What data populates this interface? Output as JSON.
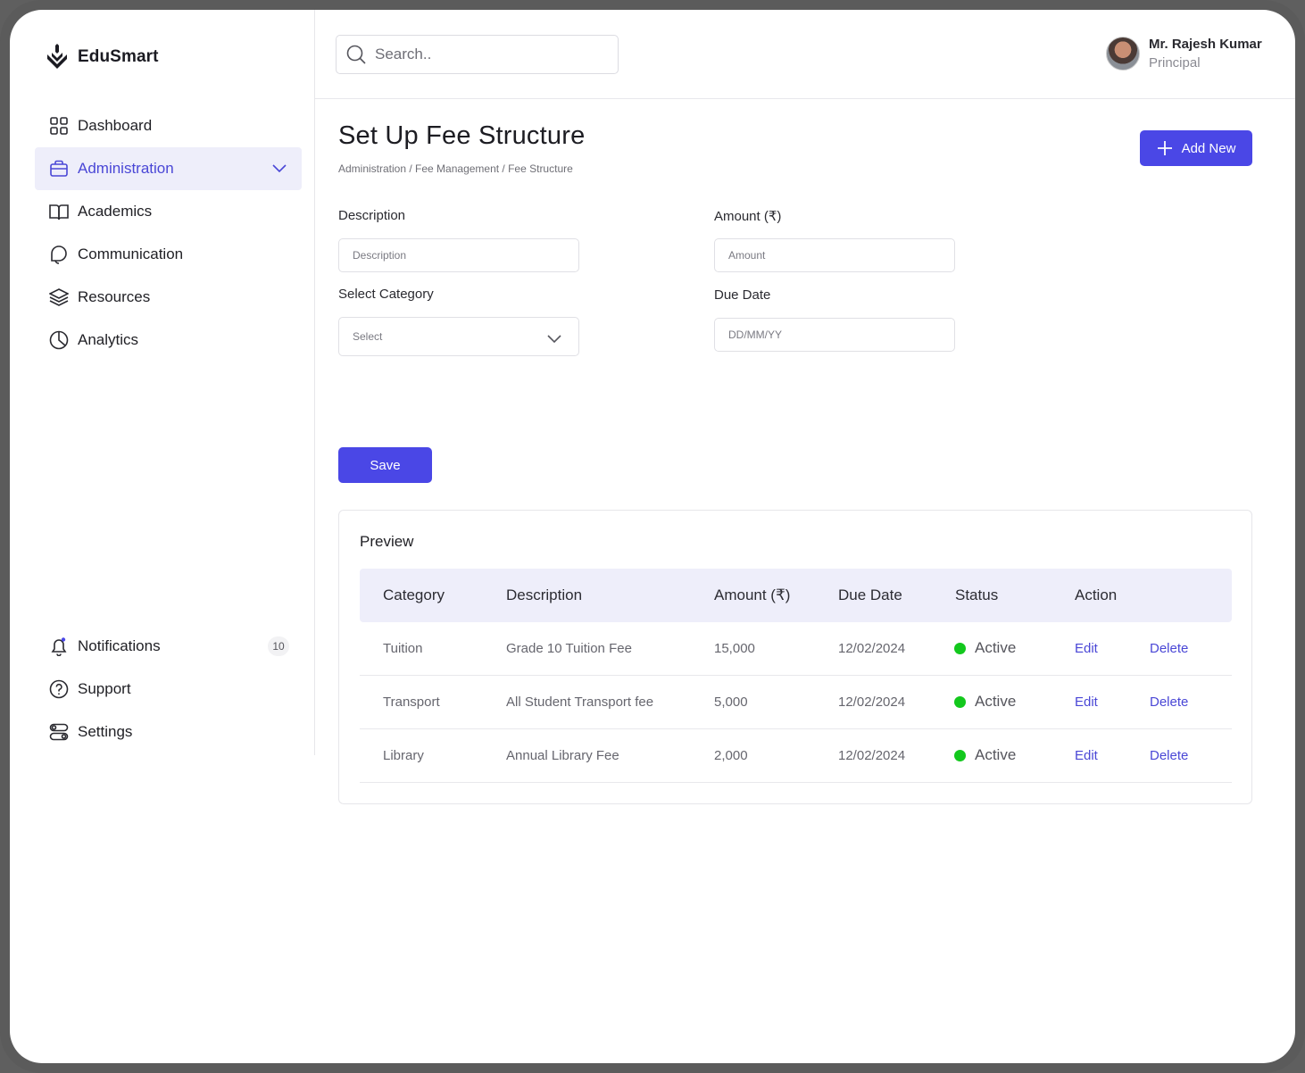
{
  "app": {
    "name": "EduSmart"
  },
  "search": {
    "placeholder": "Search.."
  },
  "user": {
    "name": "Mr. Rajesh Kumar",
    "role": "Principal"
  },
  "sidebar": {
    "items": [
      {
        "label": "Dashboard",
        "icon": "grid-icon"
      },
      {
        "label": "Administration",
        "icon": "briefcase-icon",
        "active": true
      },
      {
        "label": "Academics",
        "icon": "book-icon"
      },
      {
        "label": "Communication",
        "icon": "chat-icon"
      },
      {
        "label": "Resources",
        "icon": "layers-icon"
      },
      {
        "label": "Analytics",
        "icon": "pie-chart-icon"
      }
    ],
    "bottom_items": [
      {
        "label": "Notifications",
        "icon": "bell-icon",
        "badge": "10"
      },
      {
        "label": "Support",
        "icon": "help-icon"
      },
      {
        "label": "Settings",
        "icon": "toggles-icon"
      }
    ]
  },
  "page": {
    "title": "Set Up Fee Structure",
    "breadcrumb": "Administration / Fee Management / Fee Structure",
    "add_button": "Add New",
    "save_button": "Save"
  },
  "form": {
    "description": {
      "label": "Description",
      "placeholder": "Description"
    },
    "amount": {
      "label": "Amount (₹)",
      "placeholder": "Amount"
    },
    "category": {
      "label": "Select Category",
      "value": "Select"
    },
    "due_date": {
      "label": "Due Date",
      "placeholder": "DD/MM/YY"
    }
  },
  "preview": {
    "title": "Preview",
    "columns": [
      "Category",
      "Description",
      "Amount (₹)",
      "Due Date",
      "Status",
      "Action"
    ],
    "rows": [
      {
        "category": "Tuition",
        "description": "Grade 10 Tuition Fee",
        "amount": "15,000",
        "due_date": "12/02/2024",
        "status": "Active",
        "edit": "Edit",
        "delete": "Delete"
      },
      {
        "category": "Transport",
        "description": "All Student Transport fee",
        "amount": "5,000",
        "due_date": "12/02/2024",
        "status": "Active",
        "edit": "Edit",
        "delete": "Delete"
      },
      {
        "category": "Library",
        "description": "Annual Library Fee",
        "amount": "2,000",
        "due_date": "12/02/2024",
        "status": "Active",
        "edit": "Edit",
        "delete": "Delete"
      }
    ]
  },
  "colors": {
    "accent": "#4a47e6",
    "active_bg": "#eeeefa",
    "status_green": "#13c81d"
  }
}
